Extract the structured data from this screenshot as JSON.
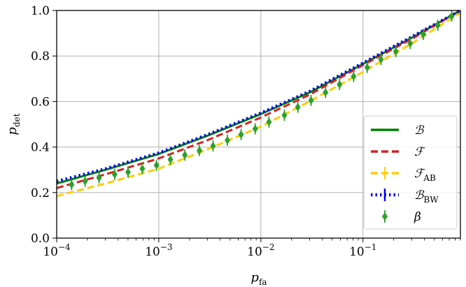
{
  "chart_data": {
    "type": "line",
    "xlabel": "p_fa",
    "ylabel": "p_det",
    "xscale": "log",
    "xlim": [
      0.0001,
      0.9
    ],
    "ylim": [
      0.0,
      1.0
    ],
    "grid": true,
    "legend_position": "lower-right",
    "x_ticks": [
      {
        "value": 0.0001,
        "mantissa": "10",
        "exp": "−4"
      },
      {
        "value": 0.001,
        "mantissa": "10",
        "exp": "−3"
      },
      {
        "value": 0.01,
        "mantissa": "10",
        "exp": "−2"
      },
      {
        "value": 0.1,
        "mantissa": "10",
        "exp": "−1"
      }
    ],
    "y_ticks": [
      {
        "value": 0.0,
        "label": "0.0"
      },
      {
        "value": 0.2,
        "label": "0.2"
      },
      {
        "value": 0.4,
        "label": "0.4"
      },
      {
        "value": 0.6,
        "label": "0.6"
      },
      {
        "value": 0.8,
        "label": "0.8"
      },
      {
        "value": 1.0,
        "label": "1.0"
      }
    ],
    "series": [
      {
        "name": "B",
        "color": "#008000",
        "style": "solid",
        "x": [
          0.0001,
          0.0003,
          0.001,
          0.003,
          0.01,
          0.03,
          0.1,
          0.3,
          0.9
        ],
        "y": [
          0.24,
          0.3,
          0.37,
          0.45,
          0.545,
          0.64,
          0.765,
          0.88,
          1.0
        ]
      },
      {
        "name": "F",
        "color": "#d62020",
        "style": "dashed",
        "x": [
          0.0001,
          0.0003,
          0.001,
          0.003,
          0.01,
          0.03,
          0.1,
          0.3,
          0.9
        ],
        "y": [
          0.22,
          0.28,
          0.35,
          0.43,
          0.53,
          0.63,
          0.76,
          0.875,
          1.0
        ]
      },
      {
        "name": "F_AB",
        "color": "#ffcc00",
        "style": "dashed",
        "x": [
          0.0001,
          0.0003,
          0.001,
          0.003,
          0.01,
          0.03,
          0.1,
          0.3,
          0.9
        ],
        "y": [
          0.185,
          0.24,
          0.305,
          0.39,
          0.49,
          0.6,
          0.73,
          0.855,
          0.99
        ]
      },
      {
        "name": "B_BW",
        "color": "#0000ff",
        "style": "dotted",
        "x": [
          0.0001,
          0.0003,
          0.001,
          0.003,
          0.01,
          0.03,
          0.1,
          0.3,
          0.9
        ],
        "y": [
          0.25,
          0.305,
          0.375,
          0.455,
          0.55,
          0.645,
          0.77,
          0.885,
          1.0
        ]
      },
      {
        "name": "β",
        "color": "#2ca02c",
        "style": "markers",
        "x": [
          0.00014,
          0.00019,
          0.00026,
          0.00037,
          0.0005,
          0.00069,
          0.00095,
          0.0013,
          0.0018,
          0.0025,
          0.0034,
          0.0047,
          0.0064,
          0.0088,
          0.012,
          0.017,
          0.023,
          0.031,
          0.043,
          0.059,
          0.081,
          0.11,
          0.15,
          0.21,
          0.29,
          0.39,
          0.54,
          0.74
        ],
        "y": [
          0.235,
          0.25,
          0.265,
          0.28,
          0.29,
          0.305,
          0.32,
          0.345,
          0.365,
          0.385,
          0.405,
          0.43,
          0.455,
          0.48,
          0.51,
          0.54,
          0.575,
          0.605,
          0.64,
          0.675,
          0.71,
          0.75,
          0.785,
          0.82,
          0.855,
          0.895,
          0.935,
          0.975
        ]
      }
    ]
  }
}
